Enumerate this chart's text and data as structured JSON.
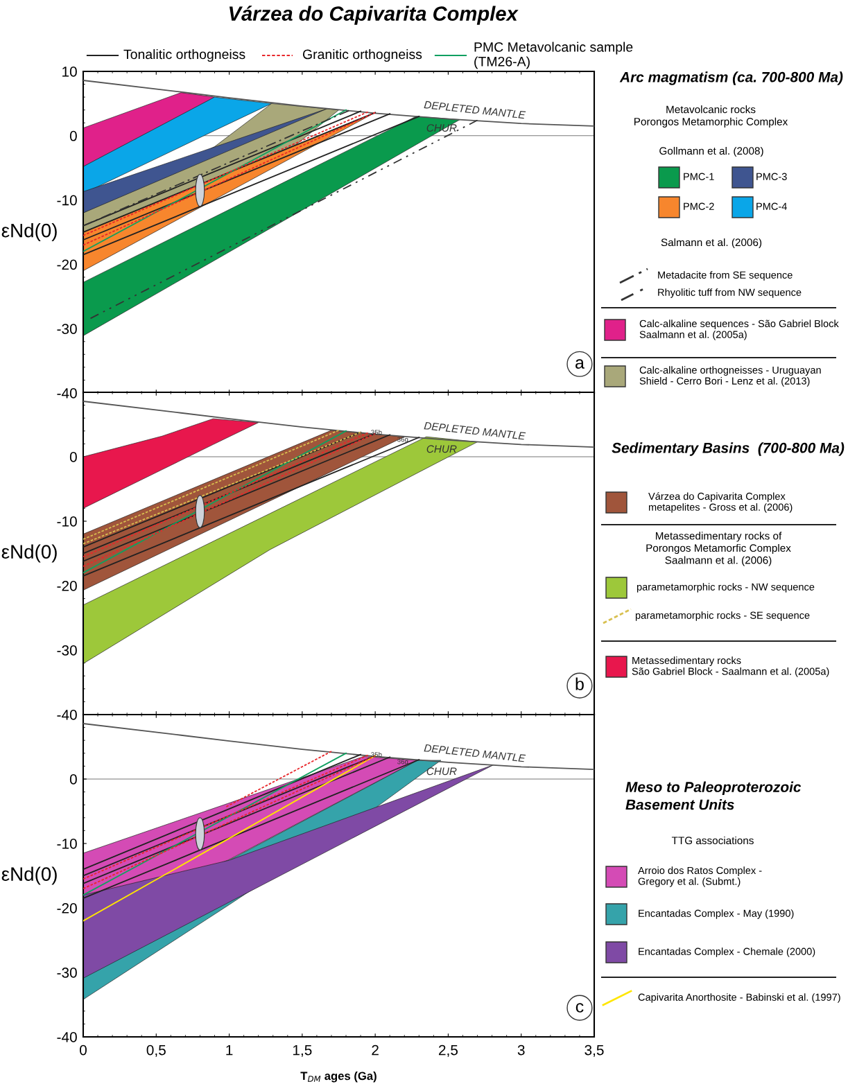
{
  "chart_data": [
    {
      "type": "area",
      "title": "Várzea do Capivarita Complex",
      "ylabel": "εNd(0)",
      "legend_title": "Arc magmatism (ca. 700-800 Ma)",
      "legend": "right",
      "xlim": [
        0,
        3.5
      ],
      "ylim": [
        -40,
        10
      ],
      "yticks": [
        10,
        0,
        -10,
        -20,
        -30,
        -40
      ],
      "xticks": [
        {
          "value": 0,
          "label": null
        },
        {
          "value": 0.5,
          "label": null
        },
        {
          "value": 1,
          "label": null
        },
        {
          "value": 1.5,
          "label": null
        },
        {
          "value": 2,
          "label": null
        },
        {
          "value": 2.5,
          "label": null
        },
        {
          "value": 3,
          "label": null
        },
        {
          "value": 3.5,
          "label": null
        }
      ],
      "tick_labels": "y",
      "grid": false,
      "ref_lines": [
        {
          "axis": "y",
          "value": 0,
          "label": "CHUR",
          "color": "#777777"
        }
      ],
      "annotations": [
        "a",
        "Metavolcanic rocks\nPorongos Metamorphic Complex",
        "Gollmann et al. (2008)",
        "Salmann et al. (2006)"
      ],
      "series": [
        {
          "type": "line",
          "name": "DEPLETED MANTLE",
          "color": "#555555",
          "x": [
            0,
            0.67,
            1.0,
            1.5,
            2.0,
            2.5,
            3.0,
            3.5
          ],
          "values": [
            8.6,
            6.8,
            5.9,
            4.6,
            3.5,
            2.6,
            1.9,
            1.5
          ]
        },
        {
          "name": "Calc-alkaline sequences - São Gabriel Block\nSaalmann et al. (2005a)",
          "color": "#e0218a",
          "x": [
            0,
            0.67,
            0.9
          ],
          "values": [
            null,
            null,
            null
          ],
          "upper": [
            1.2,
            6.7,
            6.0
          ],
          "lower": [
            -4.8,
            3.2,
            6.0
          ]
        },
        {
          "name": "PMC-4",
          "color": "#0aa6e8",
          "x": [
            0,
            0.9,
            1.29
          ],
          "values": [
            null,
            null,
            null
          ],
          "upper": [
            -4.8,
            6.0,
            5.0
          ],
          "lower": [
            -9.0,
            0.8,
            5.0
          ]
        },
        {
          "name": "Calc-alkaline orthogneisses - Uruguayan\nShield - Cerro Bori - Lenz et al. (2013)",
          "color": "#a9a87a",
          "x": [
            0,
            0.9,
            1.29,
            1.75
          ],
          "values": [
            null,
            null,
            null,
            null
          ],
          "upper": [
            -12.0,
            -1.7,
            5.0,
            4.0
          ],
          "lower": [
            -15.5,
            -7.5,
            -4.5,
            4.0
          ]
        },
        {
          "name": "PMC-3",
          "color": "#3f5590",
          "x": [
            0,
            1.67
          ],
          "values": [
            null,
            null
          ],
          "upper": [
            -8.7,
            4.2
          ],
          "lower": [
            -12.0,
            4.2
          ]
        },
        {
          "name": "PMC-2",
          "color": "#f7862d",
          "x": [
            0,
            2.0
          ],
          "values": [
            null,
            null
          ],
          "upper": [
            -15.0,
            3.6
          ],
          "lower": [
            -21.0,
            3.6
          ]
        },
        {
          "name": "PMC-1",
          "color": "#0a9a4d",
          "x": [
            0,
            2.28,
            2.58
          ],
          "values": [
            null,
            null,
            null
          ],
          "upper": [
            -22.8,
            3.0,
            2.5
          ],
          "lower": [
            -31.1,
            -1.4,
            2.5
          ]
        },
        {
          "type": "line",
          "name": "Metadacite from SE sequence",
          "color": "#333333",
          "line_style": "dashdot",
          "x": [
            0,
            1.82
          ],
          "values": [
            -14.0,
            3.9
          ]
        },
        {
          "type": "line",
          "name": "Rhyolitic tuff from NW sequence",
          "color": "#333333",
          "line_style": "dashed",
          "x": [
            0.05,
            2.7
          ],
          "values": [
            -28.4,
            2.4
          ]
        },
        {
          "type": "line",
          "name": "Tonalitic orthogneiss",
          "color": "#222222",
          "x": [
            0,
            1.9
          ],
          "values": [
            -14.0,
            3.8
          ]
        },
        {
          "type": "line",
          "color": "#222222",
          "x": [
            0,
            2.0
          ],
          "values": [
            -15.0,
            3.6
          ]
        },
        {
          "type": "line",
          "color": "#222222",
          "x": [
            0,
            2.1
          ],
          "values": [
            -16.2,
            3.4
          ]
        },
        {
          "type": "line",
          "color": "#222222",
          "x": [
            0,
            2.3
          ],
          "values": [
            -18.5,
            3.0
          ]
        },
        {
          "type": "line",
          "name": "Granitic orthogneiss",
          "color": "#e8262a",
          "line_style": "dotted",
          "x": [
            0,
            1.95
          ],
          "values": [
            -15.5,
            3.7
          ]
        },
        {
          "type": "line",
          "color": "#e8262a",
          "line_style": "dotted",
          "x": [
            0,
            2.0
          ],
          "values": [
            -17.0,
            3.6
          ]
        },
        {
          "type": "line",
          "name": "PMC Metavolcanic sample\n(TM26-A)",
          "color": "#10a060",
          "x": [
            0,
            1.8
          ],
          "values": [
            -18.0,
            4.0
          ]
        }
      ]
    },
    {
      "type": "area",
      "ylabel": "εNd(0)",
      "legend_title": "Sedimentary Basins  (700-800 Ma)",
      "legend": "right",
      "xlim": [
        0,
        3.5
      ],
      "ylim": [
        -40,
        10
      ],
      "yticks": [
        0,
        -10,
        -20,
        -30,
        -40
      ],
      "xticks": [
        {
          "value": 0,
          "label": null
        },
        {
          "value": 0.5,
          "label": null
        },
        {
          "value": 1,
          "label": null
        },
        {
          "value": 1.5,
          "label": null
        },
        {
          "value": 2,
          "label": null
        },
        {
          "value": 2.5,
          "label": null
        },
        {
          "value": 3,
          "label": null
        },
        {
          "value": 3.5,
          "label": null
        }
      ],
      "tick_labels": "y",
      "grid": false,
      "ref_lines": [
        {
          "axis": "y",
          "value": 0,
          "label": "CHUR",
          "color": "#777777"
        }
      ],
      "annotations": [
        "b",
        "Metassedimentary rocks of\nPorongos Metamorfic Complex\nSaalmann et al. (2006)",
        "35b",
        "36g"
      ],
      "series": [
        {
          "type": "line",
          "name": "DEPLETED MANTLE",
          "color": "#555555",
          "x": [
            0,
            0.67,
            1.0,
            1.5,
            2.0,
            2.5,
            3.0,
            3.5
          ],
          "values": [
            8.6,
            6.8,
            5.9,
            4.6,
            3.5,
            2.6,
            1.9,
            1.5
          ]
        },
        {
          "name": "Metassedimentary rocks\nSão Gabriel Block - Saalmann et al. (2005a)",
          "color": "#e8174d",
          "x": [
            0,
            0.54,
            0.89,
            1.2
          ],
          "values": [
            null,
            null,
            null,
            null
          ],
          "upper": [
            0,
            3.2,
            5.9,
            5.3
          ],
          "lower": [
            -8.0,
            -2.0,
            1.9,
            5.3
          ]
        },
        {
          "name": "Várzea do Capivarita Complex\nmetapelites - Gross et al. (2006)",
          "color": "#a0553b",
          "x": [
            0,
            1.7,
            2.2
          ],
          "values": [
            null,
            null,
            null
          ],
          "upper": [
            -12.0,
            4.1,
            3.1
          ],
          "lower": [
            -20.7,
            -2.3,
            3.1
          ]
        },
        {
          "name": "parametamorphic rocks - NW sequence",
          "color": "#9dc83a",
          "x": [
            0,
            1.28,
            2.35,
            2.7
          ],
          "values": [
            null,
            null,
            null,
            null
          ],
          "upper": [
            -23.0,
            -8.8,
            3.1,
            2.3
          ],
          "lower": [
            -32.1,
            -14.4,
            -1.8,
            2.3
          ]
        },
        {
          "type": "line",
          "name": "parametamorphic rocks - SE sequence",
          "color": "#d8c050",
          "line_style": "dotted",
          "x": [
            0,
            1.75
          ],
          "values": [
            -12.8,
            4.1
          ]
        },
        {
          "type": "line",
          "color": "#d8c050",
          "line_style": "dotted",
          "x": [
            0,
            1.9
          ],
          "values": [
            -13.5,
            3.8
          ]
        },
        {
          "type": "line",
          "color": "#222222",
          "x": [
            0,
            1.9
          ],
          "values": [
            -14.0,
            3.8
          ]
        },
        {
          "type": "line",
          "color": "#222222",
          "x": [
            0,
            2.0
          ],
          "values": [
            -15.0,
            3.6
          ]
        },
        {
          "type": "line",
          "color": "#222222",
          "x": [
            0,
            2.1
          ],
          "values": [
            -16.2,
            3.4
          ]
        },
        {
          "type": "line",
          "color": "#222222",
          "x": [
            0,
            2.3
          ],
          "values": [
            -18.5,
            3.0
          ]
        },
        {
          "type": "line",
          "color": "#e8262a",
          "line_style": "dotted",
          "x": [
            0,
            1.95
          ],
          "values": [
            -15.5,
            3.7
          ]
        },
        {
          "type": "line",
          "color": "#e8262a",
          "line_style": "dotted",
          "x": [
            0,
            2.0
          ],
          "values": [
            -17.0,
            3.6
          ]
        },
        {
          "type": "line",
          "color": "#10a060",
          "x": [
            0,
            1.8
          ],
          "values": [
            -18.0,
            4.0
          ]
        }
      ]
    },
    {
      "type": "area",
      "xlabel": "T$_{DM}$ ages (Ga)",
      "ylabel": "εNd(0)",
      "legend_title": "Meso to Paleoproterozoic\nBasement Units",
      "legend": "right",
      "xlim": [
        0,
        3.5
      ],
      "ylim": [
        -40,
        10
      ],
      "yticks": [
        0,
        -10,
        -20,
        -30,
        -40
      ],
      "xticks": [
        0,
        {
          "value": 0.5,
          "label": "0,5"
        },
        1,
        {
          "value": 1.5,
          "label": "1,5"
        },
        2,
        {
          "value": 2.5,
          "label": "2,5"
        },
        3,
        {
          "value": 3.5,
          "label": "3,5"
        }
      ],
      "grid": false,
      "ref_lines": [
        {
          "axis": "y",
          "value": 0,
          "label": "CHUR",
          "color": "#777777"
        }
      ],
      "annotations": [
        "c",
        "TTG associations",
        "35b",
        "36g"
      ],
      "series": [
        {
          "type": "line",
          "name": "DEPLETED MANTLE",
          "color": "#555555",
          "x": [
            0,
            0.67,
            1.0,
            1.5,
            2.0,
            2.5,
            3.0,
            3.5
          ],
          "values": [
            8.6,
            6.8,
            5.9,
            4.6,
            3.5,
            2.6,
            1.9,
            1.5
          ]
        },
        {
          "name": "Arroio dos Ratos Complex -\nGregory et al. (Submt.)",
          "color": "#d44bb5",
          "x": [
            0,
            0.99,
            1.92,
            2.29
          ],
          "values": [
            null,
            null,
            null,
            null
          ],
          "upper": [
            -11.5,
            -3.8,
            3.5,
            2.9
          ],
          "lower": [
            -21.0,
            -12.6,
            -1.5,
            2.9
          ]
        },
        {
          "name": "Encantadas Complex - May (1990)",
          "color": "#35a3aa",
          "x": [
            0,
            1.0,
            2.0,
            2.29,
            2.45
          ],
          "values": [
            null,
            null,
            null,
            null,
            null
          ],
          "upper": [
            -21.0,
            -12.6,
            -0.6,
            2.9,
            2.9
          ],
          "lower": [
            -34.2,
            -19.5,
            -4.5,
            0.3,
            2.9
          ]
        },
        {
          "name": "Encantadas Complex - Chemale (2000)",
          "color": "#7f4aa5",
          "x": [
            0,
            1.0,
            2.81
          ],
          "values": [
            null,
            null,
            null
          ],
          "upper": [
            -18.0,
            -12.6,
            2.2
          ],
          "lower": [
            -30.9,
            -19.1,
            2.2
          ]
        },
        {
          "type": "line",
          "color": "#222222",
          "x": [
            0,
            1.9
          ],
          "values": [
            -14.0,
            3.8
          ]
        },
        {
          "type": "line",
          "color": "#222222",
          "x": [
            0,
            2.0
          ],
          "values": [
            -15.0,
            3.6
          ]
        },
        {
          "type": "line",
          "color": "#222222",
          "x": [
            0,
            2.1
          ],
          "values": [
            -16.2,
            3.4
          ]
        },
        {
          "type": "line",
          "color": "#222222",
          "x": [
            0,
            2.3
          ],
          "values": [
            -18.5,
            3.0
          ]
        },
        {
          "type": "line",
          "color": "#e8262a",
          "line_style": "dotted",
          "x": [
            0,
            1.95
          ],
          "values": [
            -15.5,
            3.7
          ]
        },
        {
          "type": "line",
          "color": "#e8262a",
          "line_style": "dotted",
          "x": [
            0,
            2.0
          ],
          "values": [
            -17.0,
            3.6
          ]
        },
        {
          "type": "line",
          "color": "#e8262a",
          "line_style": "dotted",
          "x": [
            0.98,
            1.7
          ],
          "values": [
            -4.3,
            4.3
          ]
        },
        {
          "type": "line",
          "color": "#10a060",
          "x": [
            0,
            1.8
          ],
          "values": [
            -18.0,
            4.0
          ]
        },
        {
          "type": "line",
          "name": "Capivarita Anorthosite - Babinski et al. (1997)",
          "color": "#ffe600",
          "x": [
            0,
            2.0
          ],
          "values": [
            -22.0,
            3.6
          ]
        }
      ]
    }
  ]
}
